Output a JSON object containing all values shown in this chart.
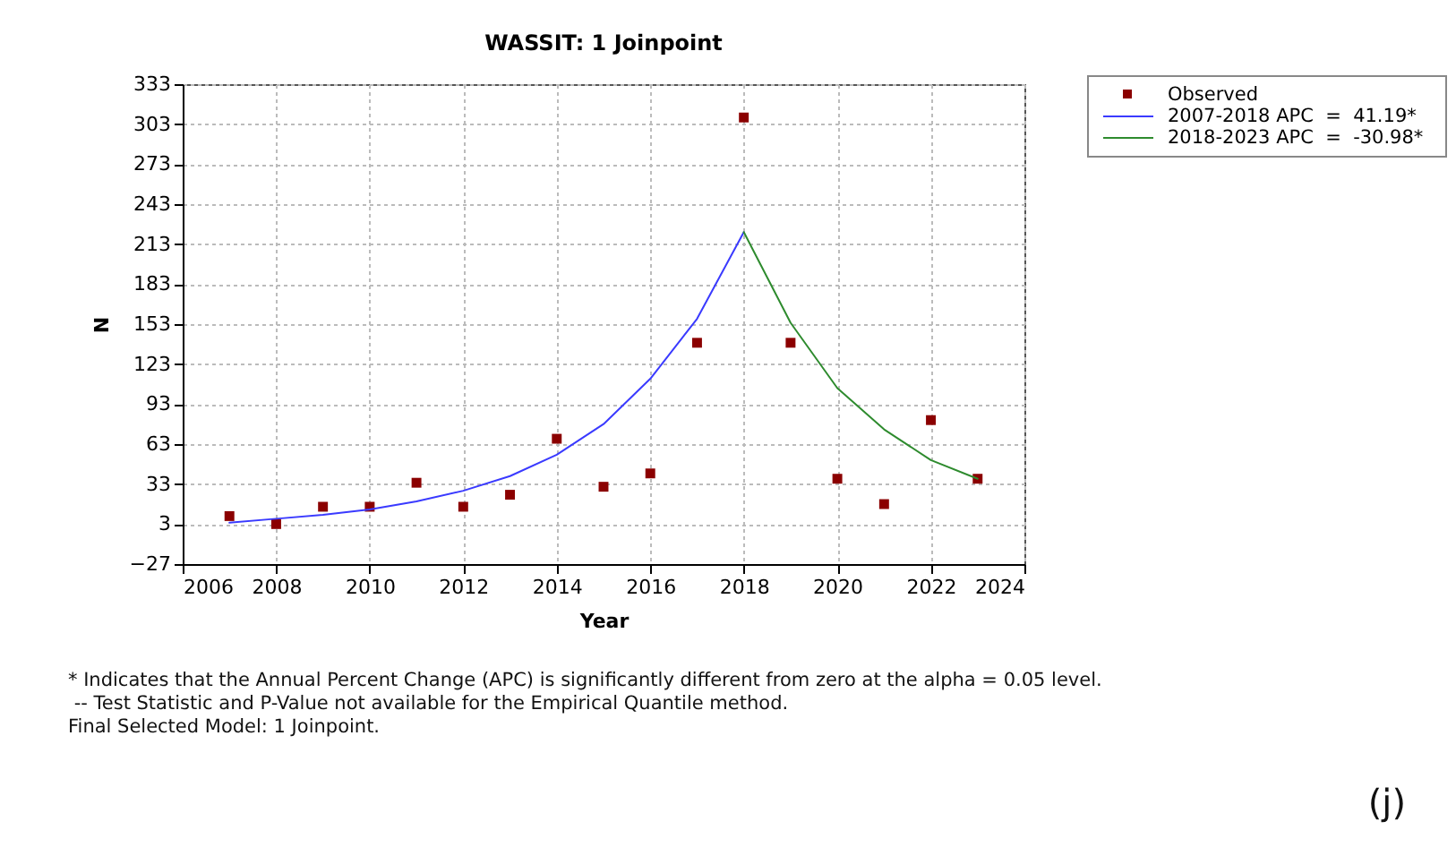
{
  "chart_data": {
    "type": "scatter",
    "title": "WASSIT: 1 Joinpoint",
    "xlabel": "Year",
    "ylabel": "N",
    "xlim": [
      2006,
      2024
    ],
    "xticks": [
      2006,
      2008,
      2010,
      2012,
      2014,
      2016,
      2018,
      2020,
      2022,
      2024
    ],
    "ylim": [
      -27,
      333
    ],
    "yticks": [
      -27,
      3,
      33,
      63,
      93,
      123,
      153,
      183,
      213,
      243,
      273,
      303,
      333
    ],
    "grid": true,
    "legend": "top right",
    "series": [
      {
        "name": "Observed",
        "type": "scatter",
        "marker": "square",
        "color": "#8b0000",
        "x": [
          2007,
          2008,
          2009,
          2010,
          2011,
          2012,
          2013,
          2014,
          2015,
          2016,
          2017,
          2018,
          2019,
          2020,
          2021,
          2022,
          2023
        ],
        "values": [
          9,
          3,
          16,
          16,
          34,
          16,
          25,
          67,
          31,
          41,
          139,
          308,
          139,
          37,
          18,
          81,
          37
        ]
      },
      {
        "name": "2007-2018 APC  =  41.19*",
        "type": "line",
        "marker": "none",
        "color": "#3a3aff",
        "x": [
          2007,
          2008,
          2009,
          2010,
          2011,
          2012,
          2013,
          2014,
          2015,
          2016,
          2017,
          2018
        ],
        "values": [
          4,
          7,
          10,
          14,
          20,
          28,
          39,
          55,
          78,
          112,
          157,
          222
        ]
      },
      {
        "name": "2018-2023 APC  =  -30.98*",
        "type": "line",
        "marker": "none",
        "color": "#2e8b2e",
        "x": [
          2018,
          2019,
          2020,
          2021,
          2022,
          2023
        ],
        "values": [
          222,
          154,
          105,
          74,
          51,
          37
        ]
      }
    ],
    "annotations": [
      "* Indicates that the Annual Percent Change (APC) is significantly different from zero at the alpha = 0.05 level.",
      " -- Test Statistic and P-Value not available for the Empirical Quantile method.",
      "Final Selected Model: 1 Joinpoint.",
      "(j)"
    ]
  }
}
